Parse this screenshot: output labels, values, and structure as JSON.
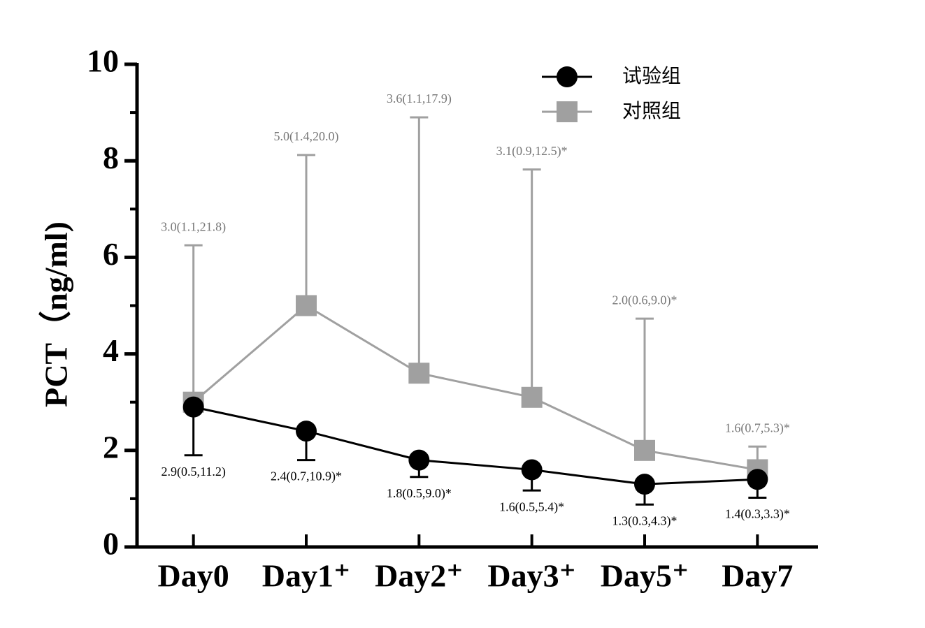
{
  "chart_data": {
    "type": "line",
    "y_label": "PCT（ng/ml)",
    "categories": [
      "Day0",
      "Day1⁺",
      "Day2⁺",
      "Day3⁺",
      "Day5⁺",
      "Day7"
    ],
    "series": [
      {
        "name": "试验组",
        "color": "#000000",
        "marker": "circle",
        "error_direction": "down",
        "values": [
          2.9,
          2.4,
          1.8,
          1.6,
          1.3,
          1.4
        ],
        "errors": [
          1.0,
          0.6,
          0.35,
          0.43,
          0.42,
          0.38
        ],
        "value_labels": [
          "2.9(0.5,11.2)",
          "2.4(0.7,10.9)*",
          "1.8(0.5,9.0)*",
          "1.6(0.5,5.4)*",
          "1.3(0.3,4.3)*",
          "1.4(0.3,3.3)*"
        ]
      },
      {
        "name": "对照组",
        "color": "#a0a0a0",
        "marker": "square",
        "error_direction": "up",
        "values": [
          3.0,
          5.0,
          3.6,
          3.1,
          2.0,
          1.6
        ],
        "errors": [
          3.25,
          3.12,
          5.3,
          4.72,
          2.73,
          0.48
        ],
        "value_labels": [
          "3.0(1.1,21.8)",
          "5.0(1.4,20.0)",
          "3.6(1.1,17.9)",
          "3.1(0.9,12.5)*",
          "2.0(0.6,9.0)*",
          "1.6(0.7,5.3)*"
        ]
      }
    ],
    "ylim": [
      0,
      10
    ],
    "yticks": [
      0,
      2,
      4,
      6,
      8,
      10
    ],
    "minor_yticks": [
      1,
      3,
      5,
      7,
      9
    ],
    "grid": false,
    "legend": "top-right"
  }
}
